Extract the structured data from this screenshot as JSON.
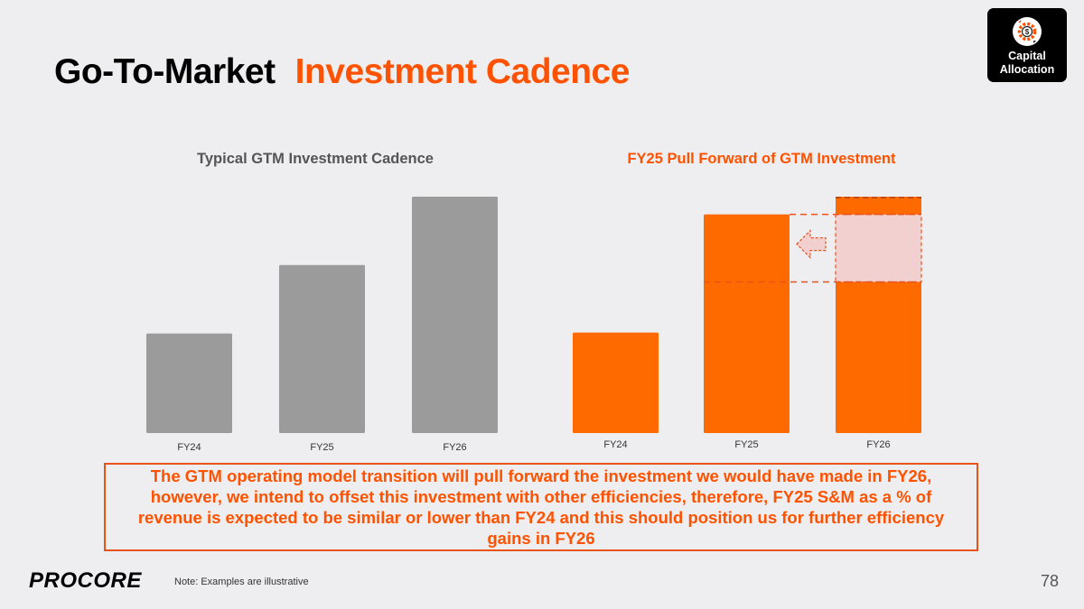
{
  "title": {
    "part1": "Go-To-Market",
    "part2": "Investment Cadence"
  },
  "badge": {
    "label_line1": "Capital",
    "label_line2": "Allocation",
    "icon": "gear-dollar-icon"
  },
  "colors": {
    "accent": "#ff5200",
    "gray_bar": "#9b9b9b",
    "orange_bar": "#ff6a00",
    "shaded": "#f2d0d0",
    "background": "#eeeef0"
  },
  "chart_data": [
    {
      "type": "bar",
      "title": "Typical GTM Investment Cadence",
      "categories": [
        "FY24",
        "FY25",
        "FY26"
      ],
      "values": [
        112,
        189,
        266
      ],
      "ylim": [
        0,
        270
      ],
      "xlabel": "",
      "ylabel": "",
      "grid": false,
      "color": "#9b9b9b"
    },
    {
      "type": "bar",
      "title": "FY25 Pull Forward of GTM Investment",
      "categories": [
        "FY24",
        "FY25",
        "FY26"
      ],
      "values": [
        113,
        246,
        266
      ],
      "ylim": [
        0,
        270
      ],
      "pull_forward": {
        "from": 170,
        "to": 246,
        "note": "illustrative shift of FY26 investment into FY25"
      },
      "xlabel": "",
      "ylabel": "",
      "grid": false,
      "color": "#ff6a00"
    }
  ],
  "callout": "The GTM operating model transition will pull forward the investment we would have made in FY26, however, we intend to offset this investment with other efficiencies, therefore, FY25 S&M as a % of revenue is expected to be similar or lower than FY24 and this should position us for further efficiency gains in FY26",
  "footer": {
    "logo": "PROCORE",
    "note": "Note: Examples are illustrative",
    "page": "78"
  }
}
